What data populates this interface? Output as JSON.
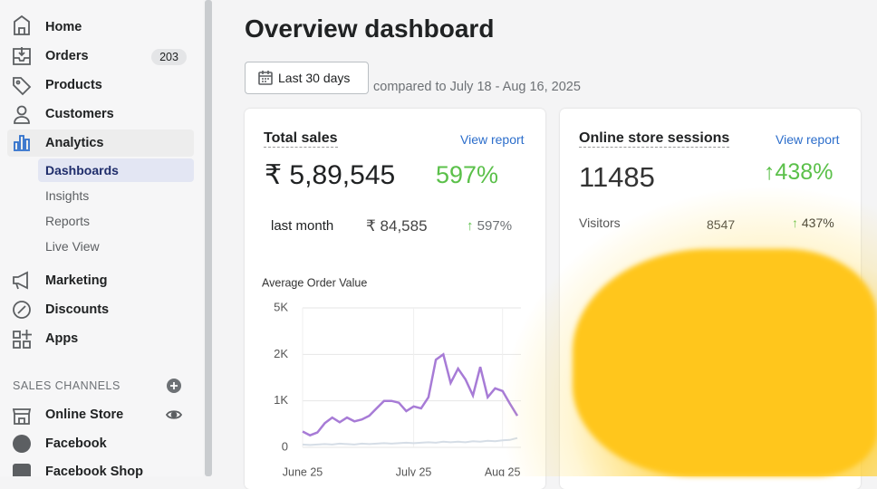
{
  "sidebar": {
    "nav": [
      {
        "label": "Home"
      },
      {
        "label": "Orders",
        "badge": 203
      },
      {
        "label": "Products"
      },
      {
        "label": "Customers"
      },
      {
        "label": "Analytics",
        "children": [
          "Dashboards",
          "Insights",
          "Reports",
          "Live View"
        ]
      },
      {
        "label": "Marketing"
      },
      {
        "label": "Discounts"
      },
      {
        "label": "Apps"
      }
    ],
    "channels_heading": "SALES CHANNELS",
    "channels": [
      "Online Store",
      "Facebook",
      "Facebook Shop"
    ]
  },
  "main": {
    "title": "Overview dashboard",
    "date_button": "Last 30 days",
    "comparison": "compared to July 18 - Aug 16, 2025",
    "cards": [
      {
        "title": "Total sales",
        "link": "View report",
        "value": "₹ 5,89,545",
        "change": "597%",
        "row_label": "last month",
        "row_value": "₹ 84,585",
        "row_change": "597%"
      },
      {
        "title": "Online store sessions",
        "link": "View report",
        "value": 11485,
        "change": "438%",
        "row_label": "Visitors",
        "row_value": 8547,
        "row_change": "437%"
      }
    ]
  },
  "chart_data": {
    "type": "line",
    "title": "Average Order Value",
    "categories": [
      "June 25",
      null,
      null,
      null,
      null,
      null,
      null,
      null,
      null,
      null,
      null,
      null,
      null,
      null,
      null,
      "July 25",
      null,
      null,
      null,
      null,
      null,
      null,
      null,
      null,
      null,
      null,
      null,
      "Aug 25",
      null,
      null
    ],
    "series": [
      {
        "color": "#a77bd6",
        "values": [
          340,
          260,
          320,
          520,
          640,
          540,
          640,
          560,
          600,
          680,
          840,
          1000,
          1000,
          960,
          780,
          880,
          840,
          1077,
          1885,
          2000,
          1385,
          1692,
          1462,
          1115,
          1730,
          1077,
          1270,
          1212,
          940,
          680
        ]
      },
      {
        "color": "#d5dde6",
        "values": [
          60,
          50,
          60,
          70,
          60,
          80,
          70,
          60,
          80,
          70,
          80,
          90,
          80,
          90,
          100,
          90,
          100,
          110,
          100,
          120,
          110,
          120,
          110,
          130,
          120,
          140,
          130,
          150,
          160,
          200
        ]
      }
    ],
    "ylim": [
      0,
      5000
    ],
    "yticks": [
      0,
      {
        "value": 1000,
        "label": "1K"
      },
      {
        "value": 2000,
        "label": "2K"
      },
      {
        "value": 5000,
        "label": "5K"
      }
    ],
    "grid": true
  }
}
